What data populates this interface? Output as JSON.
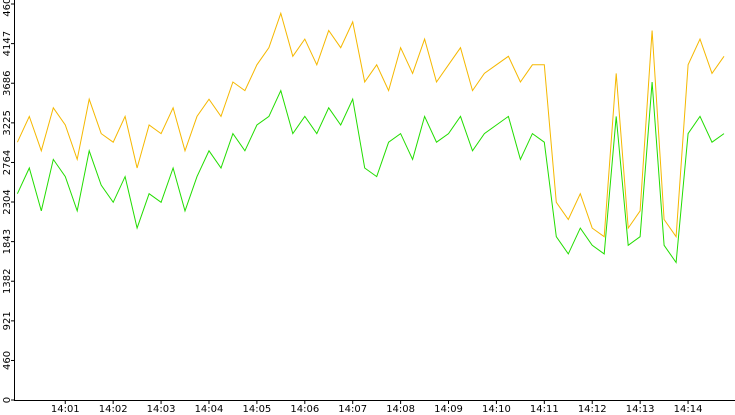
{
  "chart_data": {
    "type": "line",
    "x": [
      0,
      0.25,
      0.5,
      0.75,
      1,
      1.25,
      1.5,
      1.75,
      2,
      2.25,
      2.5,
      2.75,
      3,
      3.25,
      3.5,
      3.75,
      4,
      4.25,
      4.5,
      4.75,
      5,
      5.25,
      5.5,
      5.75,
      6,
      6.25,
      6.5,
      6.75,
      7,
      7.25,
      7.5,
      7.75,
      8,
      8.25,
      8.5,
      8.75,
      9,
      9.25,
      9.5,
      9.75,
      10,
      10.25,
      10.5,
      10.75,
      11,
      11.25,
      11.5,
      11.75,
      12,
      12.25,
      12.5,
      12.75,
      13,
      13.25,
      13.5,
      13.75,
      14,
      14.25,
      14.5,
      14.75
    ],
    "series": [
      {
        "name": "series-orange",
        "color": "#f5b800",
        "values": [
          3000,
          3300,
          2900,
          3400,
          3200,
          2800,
          3500,
          3100,
          3000,
          3300,
          2700,
          3200,
          3100,
          3400,
          2900,
          3300,
          3500,
          3300,
          3700,
          3600,
          3900,
          4100,
          4500,
          4000,
          4200,
          3900,
          4300,
          4100,
          4400,
          3700,
          3900,
          3600,
          4100,
          3800,
          4200,
          3700,
          3900,
          4100,
          3600,
          3800,
          3900,
          4000,
          3700,
          3900,
          3900,
          2300,
          2100,
          2400,
          2000,
          1900,
          3800,
          2000,
          2200,
          4300,
          2100,
          1900,
          3900,
          4200,
          3800,
          4000
        ]
      },
      {
        "name": "series-green",
        "color": "#22dd00",
        "values": [
          2400,
          2700,
          2200,
          2800,
          2600,
          2200,
          2900,
          2500,
          2300,
          2600,
          2000,
          2400,
          2300,
          2700,
          2200,
          2600,
          2900,
          2700,
          3100,
          2900,
          3200,
          3300,
          3600,
          3100,
          3300,
          3100,
          3400,
          3200,
          3500,
          2700,
          2600,
          3000,
          3100,
          2800,
          3300,
          3000,
          3100,
          3300,
          2900,
          3100,
          3200,
          3300,
          2800,
          3100,
          3000,
          1900,
          1700,
          2000,
          1800,
          1700,
          3300,
          1800,
          1900,
          3700,
          1800,
          1600,
          3100,
          3300,
          3000,
          3100
        ]
      }
    ],
    "xlim": [
      -0.07,
      14.98
    ],
    "xticks": [
      {
        "value": 1,
        "label": "14:01"
      },
      {
        "value": 2,
        "label": "14:02"
      },
      {
        "value": 3,
        "label": "14:03"
      },
      {
        "value": 4,
        "label": "14:04"
      },
      {
        "value": 5,
        "label": "14:05"
      },
      {
        "value": 6,
        "label": "14:06"
      },
      {
        "value": 7,
        "label": "14:07"
      },
      {
        "value": 8,
        "label": "14:08"
      },
      {
        "value": 9,
        "label": "14:09"
      },
      {
        "value": 10,
        "label": "14:10"
      },
      {
        "value": 11,
        "label": "14:11"
      },
      {
        "value": 12,
        "label": "14:12"
      },
      {
        "value": 13,
        "label": "14:13"
      },
      {
        "value": 14,
        "label": "14:14"
      }
    ],
    "ylim": [
      0,
      4608
    ],
    "yticks": [
      0,
      460,
      921,
      1382,
      1843,
      2304,
      2764,
      3225,
      3686,
      4147,
      4608
    ]
  }
}
